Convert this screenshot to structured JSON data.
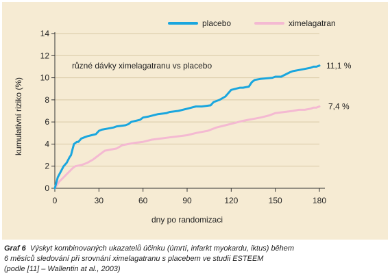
{
  "chart_data": {
    "type": "line",
    "xlabel": "dny po randomizaci",
    "ylabel": "kumulativní riziko (%)",
    "xlim": [
      0,
      180
    ],
    "ylim": [
      0,
      14
    ],
    "xticks": [
      "0",
      "30",
      "60",
      "90",
      "120",
      "150",
      "180"
    ],
    "yticks": [
      "0",
      "2",
      "4",
      "6",
      "8",
      "10",
      "12",
      "14"
    ],
    "grid": "horizontal",
    "legend_position": "top-right",
    "series": [
      {
        "name": "placebo",
        "color": "#1aa6de",
        "end_label": "11,1 %",
        "x": [
          0,
          2,
          4,
          6,
          8,
          10,
          11,
          12,
          13,
          14,
          15,
          16,
          18,
          20,
          22,
          25,
          28,
          30,
          32,
          36,
          40,
          42,
          48,
          50,
          52,
          58,
          60,
          64,
          70,
          76,
          78,
          84,
          90,
          96,
          100,
          106,
          108,
          112,
          116,
          120,
          126,
          128,
          132,
          134,
          136,
          140,
          148,
          150,
          154,
          160,
          162,
          166,
          170,
          174,
          176,
          178,
          180
        ],
        "y": [
          0,
          1.0,
          1.5,
          2.0,
          2.3,
          2.8,
          3.0,
          3.5,
          4.0,
          4.1,
          4.2,
          4.2,
          4.5,
          4.6,
          4.7,
          4.8,
          4.9,
          5.2,
          5.3,
          5.4,
          5.5,
          5.6,
          5.7,
          5.8,
          6.0,
          6.2,
          6.4,
          6.5,
          6.7,
          6.8,
          6.9,
          7.0,
          7.2,
          7.4,
          7.4,
          7.5,
          7.8,
          8.0,
          8.3,
          8.9,
          9.1,
          9.1,
          9.2,
          9.6,
          9.8,
          9.9,
          10.0,
          10.1,
          10.1,
          10.5,
          10.6,
          10.7,
          10.8,
          10.9,
          11.0,
          11.0,
          11.1
        ]
      },
      {
        "name": "ximelagatran",
        "color": "#f4b9d2",
        "end_label": "7,4 %",
        "x": [
          0,
          3,
          6,
          9,
          12,
          14,
          18,
          22,
          26,
          30,
          34,
          38,
          42,
          46,
          50,
          54,
          60,
          66,
          72,
          78,
          84,
          90,
          96,
          100,
          104,
          110,
          116,
          122,
          128,
          132,
          136,
          140,
          146,
          150,
          156,
          162,
          166,
          170,
          174,
          176,
          178,
          180
        ],
        "y": [
          0,
          0.6,
          1.0,
          1.4,
          1.8,
          2.0,
          2.1,
          2.3,
          2.6,
          3.0,
          3.4,
          3.5,
          3.6,
          3.9,
          4.0,
          4.1,
          4.2,
          4.4,
          4.5,
          4.6,
          4.7,
          4.8,
          5.0,
          5.1,
          5.2,
          5.5,
          5.7,
          5.9,
          6.1,
          6.2,
          6.3,
          6.4,
          6.6,
          6.8,
          6.9,
          7.0,
          7.1,
          7.1,
          7.2,
          7.3,
          7.3,
          7.4
        ]
      }
    ],
    "annotation": "různé dávky ximelagatranu vs placebo"
  },
  "caption": {
    "label": "Graf 6",
    "line1": "Výskyt kombinovaných ukazatelů účinku (úmrtí, infarkt myokardu, iktus) během",
    "line2": "6 měsíců sledování při srovnání ximelagatranu s placebem ve studii ESTEEM",
    "line3": "(podle [11] – Wallentin at al., 2003)"
  }
}
